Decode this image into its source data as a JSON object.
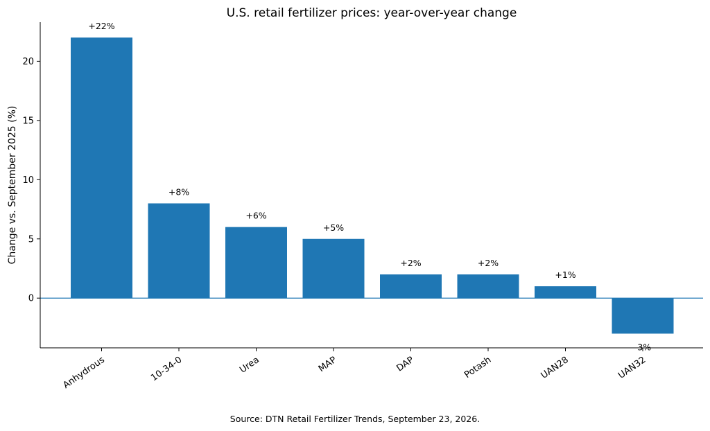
{
  "chart_data": {
    "type": "bar",
    "title": "U.S. retail fertilizer prices: year-over-year change",
    "ylabel": "Change vs. September 2025 (%)",
    "xlabel": "",
    "categories": [
      "Anhydrous",
      "10-34-0",
      "Urea",
      "MAP",
      "DAP",
      "Potash",
      "UAN28",
      "UAN32"
    ],
    "values": [
      22,
      8,
      6,
      5,
      2,
      2,
      1,
      -3
    ],
    "data_labels": [
      "+22%",
      "+8%",
      "+6%",
      "+5%",
      "+2%",
      "+2%",
      "+1%",
      "-3%"
    ],
    "ylim": [
      -4.2,
      23.3
    ],
    "yticks": [
      0,
      5,
      10,
      15,
      20
    ],
    "grid": false,
    "bar_color": "#1f77b4",
    "zero_line_color": "#1f77b4"
  },
  "source_note": "Source: DTN Retail Fertilizer Trends, September 23, 2026."
}
